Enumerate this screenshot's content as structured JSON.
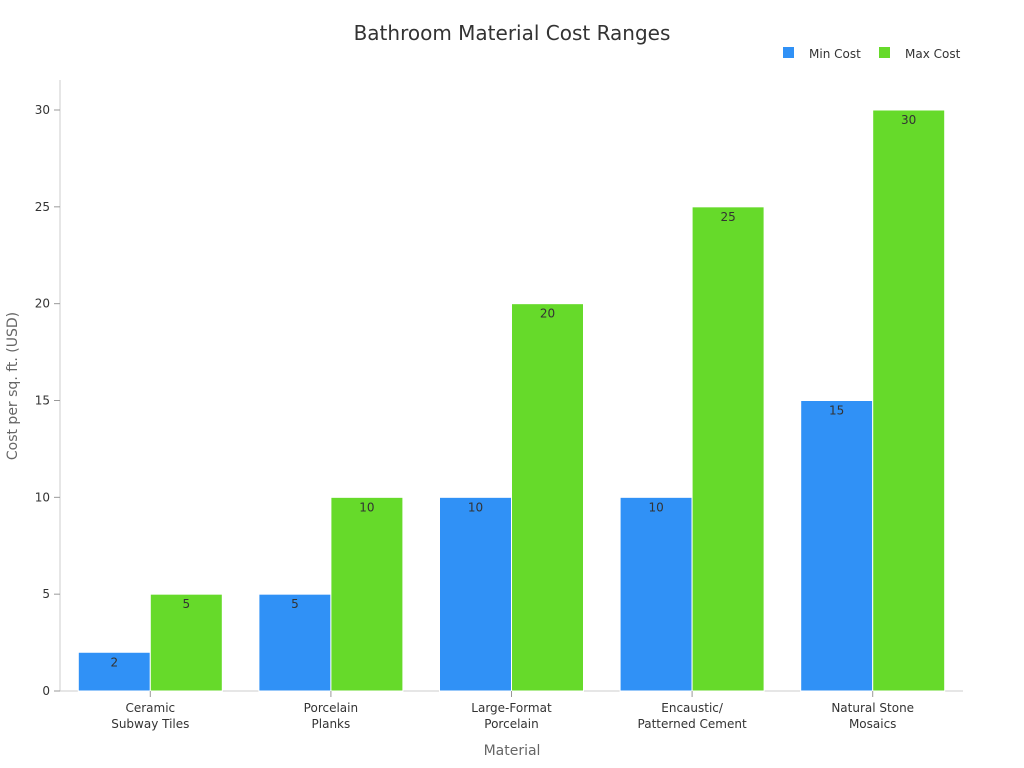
{
  "chart_data": {
    "type": "bar",
    "title": "Bathroom Material Cost Ranges",
    "xlabel": "Material",
    "ylabel": "Cost per sq. ft. (USD)",
    "categories": [
      [
        "Ceramic",
        "Subway Tiles"
      ],
      [
        "Porcelain",
        "Planks"
      ],
      [
        "Large-Format",
        "Porcelain"
      ],
      [
        "Encaustic/",
        "Patterned Cement"
      ],
      [
        "Natural Stone",
        "Mosaics"
      ]
    ],
    "series": [
      {
        "name": "Min Cost",
        "color": "#3091f6",
        "values": [
          2,
          5,
          10,
          10,
          15
        ]
      },
      {
        "name": "Max Cost",
        "color": "#66da2a",
        "values": [
          5,
          10,
          20,
          25,
          30
        ]
      }
    ],
    "ylim": [
      0,
      31.5
    ],
    "yticks": [
      0,
      5,
      10,
      15,
      20,
      25,
      30
    ],
    "legend_position": "top-right",
    "grid": false
  }
}
